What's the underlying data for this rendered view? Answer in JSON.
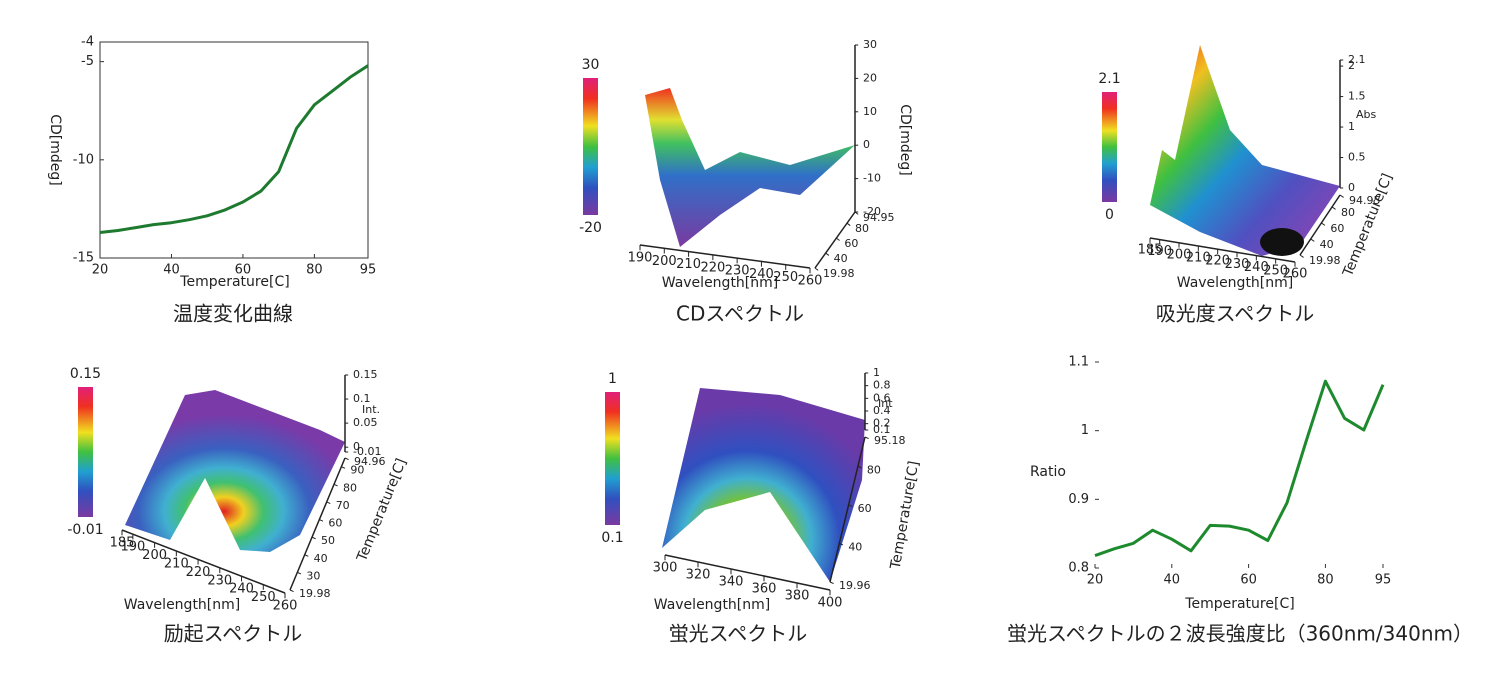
{
  "chart_data": [
    {
      "type": "line",
      "title": "温度変化曲線",
      "xlabel": "Temperature[C]",
      "ylabel": "CD[mdeg]",
      "color": "#1e7a2e",
      "x": [
        20,
        25,
        30,
        35,
        40,
        45,
        50,
        55,
        60,
        65,
        70,
        75,
        80,
        85,
        90,
        95
      ],
      "values": [
        -13.7,
        -13.6,
        -13.45,
        -13.3,
        -13.2,
        -13.05,
        -12.85,
        -12.55,
        -12.15,
        -11.6,
        -10.6,
        -8.4,
        -7.2,
        -6.5,
        -5.8,
        -5.2
      ],
      "xlim": [
        20,
        95
      ],
      "xticks": [
        20,
        40,
        60,
        80,
        95
      ],
      "ylim": [
        -15,
        -4
      ],
      "yticks": [
        -15,
        -10,
        -5,
        -4
      ],
      "frame": true
    },
    {
      "type": "surface",
      "title": "CDスペクトル",
      "colorbar": [
        30,
        -20
      ],
      "xlabel": "Wavelength[nm]",
      "zlabel": "CD[mdeg]",
      "xlim": [
        190,
        260
      ],
      "xticks": [
        190,
        200,
        210,
        220,
        230,
        240,
        250,
        260
      ],
      "ylim": [
        19.98,
        94.95
      ],
      "yticks": [
        94.95,
        80,
        60,
        40,
        19.98
      ],
      "zlim": [
        -20,
        30
      ],
      "zticks": [
        30,
        20,
        10,
        0,
        -10,
        -20
      ]
    },
    {
      "type": "surface",
      "title": "吸光度スペクトル",
      "colorbar": [
        2.1,
        0
      ],
      "xlabel": "Wavelength[nm]",
      "ylabel": "Temperature[C]",
      "zlabel": "Abs",
      "xlim": [
        185,
        260
      ],
      "xticks": [
        185,
        190,
        200,
        210,
        220,
        230,
        240,
        250,
        260
      ],
      "ylim": [
        19.98,
        94.95
      ],
      "yticks": [
        94.95,
        80,
        60,
        40,
        19.98
      ],
      "zlim": [
        0,
        2.1
      ],
      "zticks": [
        2.1,
        2,
        1.5,
        1,
        0.5,
        0
      ]
    },
    {
      "type": "surface",
      "title": "励起スペクトル",
      "colorbar": [
        0.15,
        -0.01
      ],
      "xlabel": "Wavelength[nm]",
      "ylabel": "Temperature[C]",
      "zlabel": "Int.",
      "xlim": [
        185,
        260
      ],
      "xticks": [
        185,
        190,
        200,
        210,
        220,
        230,
        240,
        250,
        260
      ],
      "ylim": [
        19.98,
        94.96
      ],
      "yticks": [
        94.96,
        90,
        80,
        70,
        60,
        50,
        40,
        30,
        19.98
      ],
      "zlim": [
        -0.01,
        0.15
      ],
      "zticks": [
        0.15,
        0.1,
        0.05,
        0,
        -0.01
      ]
    },
    {
      "type": "surface",
      "title": "蛍光スペクトル",
      "colorbar": [
        1,
        0.1
      ],
      "xlabel": "Wavelength[nm]",
      "ylabel": "Temperature[C]",
      "zlabel": "Int",
      "xlim": [
        300,
        400
      ],
      "xticks": [
        300,
        320,
        340,
        360,
        380,
        400
      ],
      "ylim": [
        19.96,
        95.18
      ],
      "yticks": [
        95.18,
        80,
        60,
        40,
        19.96
      ],
      "zlim": [
        0.1,
        1
      ],
      "zticks": [
        1,
        0.8,
        0.6,
        0.4,
        0.2,
        0.1
      ]
    },
    {
      "type": "line",
      "title": "蛍光スペクトルの２波長強度比（360nm/340nm）",
      "xlabel": "Temperature[C]",
      "ylabel": "Ratio",
      "color": "#1e8a2e",
      "x": [
        20,
        25,
        30,
        35,
        40,
        45,
        50,
        55,
        60,
        65,
        70,
        75,
        80,
        85,
        90,
        95
      ],
      "values": [
        0.818,
        0.828,
        0.836,
        0.855,
        0.842,
        0.825,
        0.862,
        0.861,
        0.855,
        0.84,
        0.895,
        0.985,
        1.072,
        1.018,
        1.001,
        1.067
      ],
      "xlim": [
        20,
        95
      ],
      "xticks": [
        20,
        40,
        60,
        80,
        95
      ],
      "ylim": [
        0.8,
        1.1
      ],
      "yticks": [
        0.8,
        0.9,
        1,
        1.1
      ],
      "frame": false
    }
  ]
}
